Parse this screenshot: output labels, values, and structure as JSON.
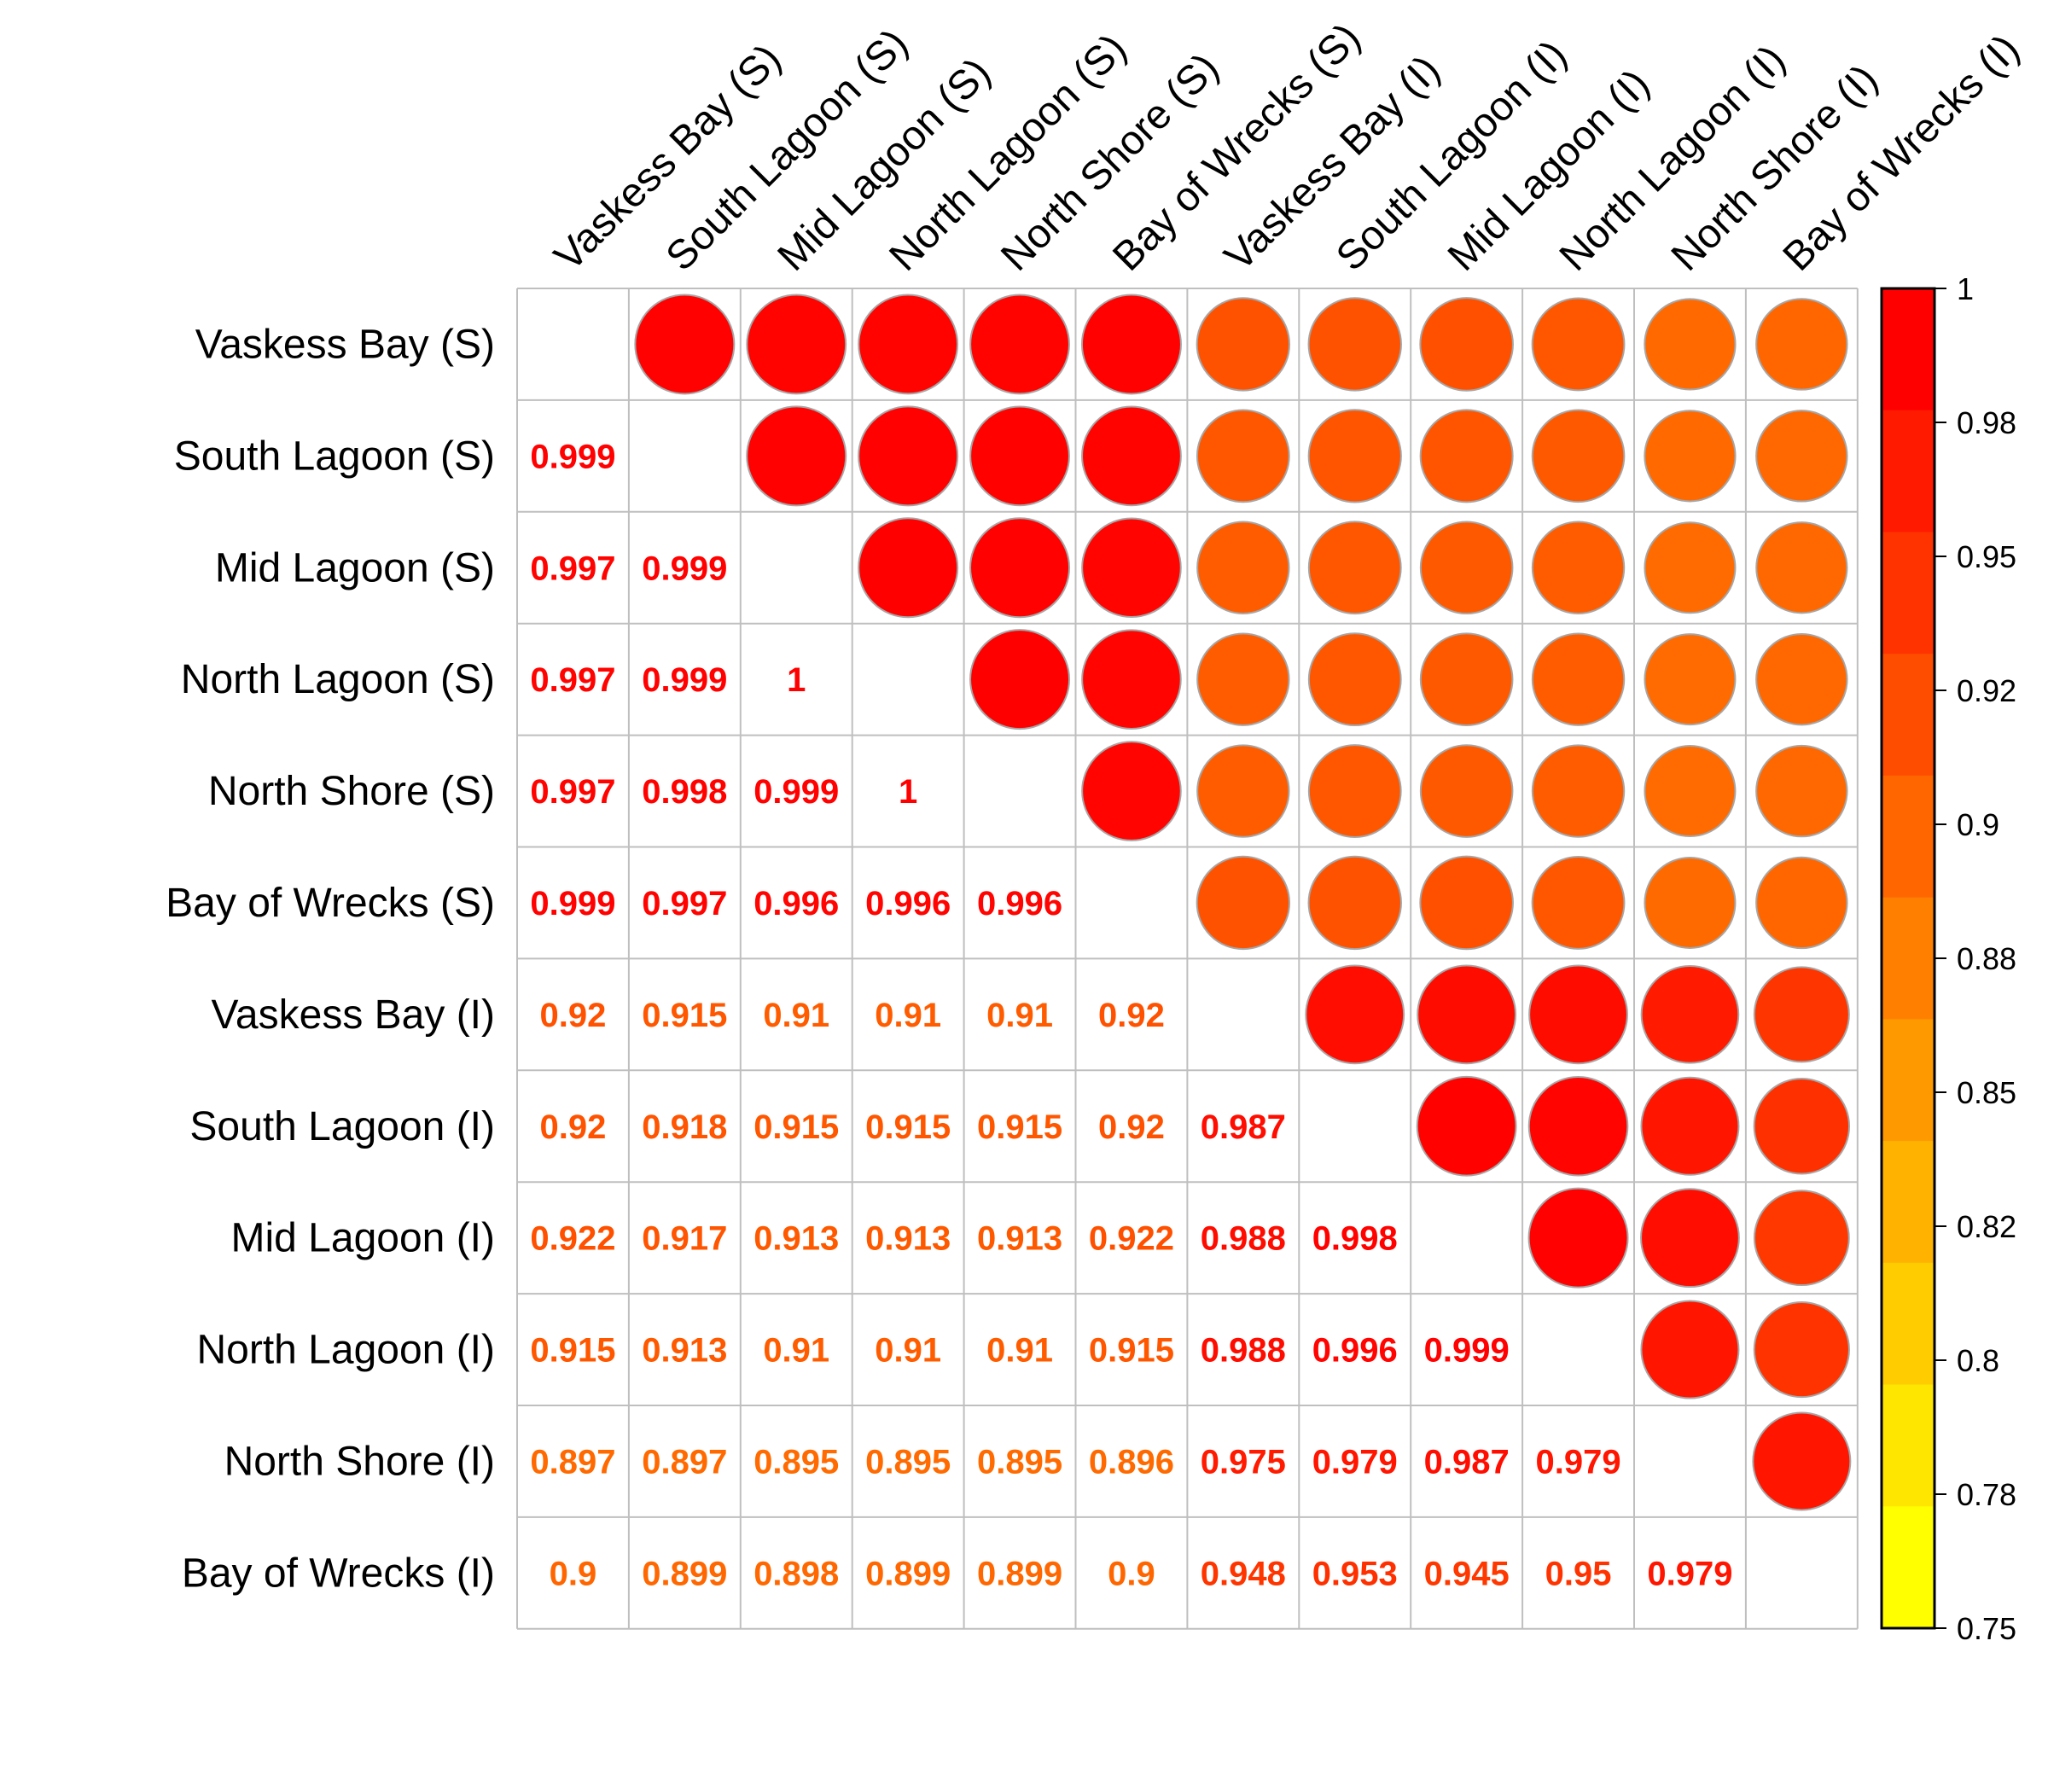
{
  "chart_data": {
    "type": "heatmap",
    "title": "",
    "labels": [
      "Vaskess Bay (S)",
      "South Lagoon (S)",
      "Mid Lagoon (S)",
      "North Lagoon (S)",
      "North Shore (S)",
      "Bay of Wrecks (S)",
      "Vaskess Bay (I)",
      "South Lagoon (I)",
      "Mid Lagoon (I)",
      "North Lagoon (I)",
      "North Shore (I)",
      "Bay of Wrecks (I)"
    ],
    "lower_triangle_labels": [
      [],
      [
        "0.999"
      ],
      [
        "0.997",
        "0.999"
      ],
      [
        "0.997",
        "0.999",
        "1"
      ],
      [
        "0.997",
        "0.998",
        "0.999",
        "1"
      ],
      [
        "0.999",
        "0.997",
        "0.996",
        "0.996",
        "0.996"
      ],
      [
        "0.92",
        "0.915",
        "0.91",
        "0.91",
        "0.91",
        "0.92"
      ],
      [
        "0.92",
        "0.918",
        "0.915",
        "0.915",
        "0.915",
        "0.92",
        "0.987"
      ],
      [
        "0.922",
        "0.917",
        "0.913",
        "0.913",
        "0.913",
        "0.922",
        "0.988",
        "0.998"
      ],
      [
        "0.915",
        "0.913",
        "0.91",
        "0.91",
        "0.91",
        "0.915",
        "0.988",
        "0.996",
        "0.999"
      ],
      [
        "0.897",
        "0.897",
        "0.895",
        "0.895",
        "0.895",
        "0.896",
        "0.975",
        "0.979",
        "0.987",
        "0.979"
      ],
      [
        "0.9",
        "0.899",
        "0.898",
        "0.899",
        "0.899",
        "0.9",
        "0.948",
        "0.953",
        "0.945",
        "0.95",
        "0.979"
      ]
    ],
    "upper_triangle": "circles sized and colored by correlation value",
    "diagonal": "blank",
    "colorbar": {
      "min": 0.75,
      "max": 1,
      "ticks": [
        "1",
        "0.98",
        "0.95",
        "0.92",
        "0.9",
        "0.88",
        "0.85",
        "0.82",
        "0.8",
        "0.78",
        "0.75"
      ],
      "colors_top_to_bottom": [
        "#ff0000",
        "#ff1a00",
        "#ff3300",
        "#ff4d00",
        "#ff6600",
        "#ff8000",
        "#ff9900",
        "#ffb300",
        "#ffcc00",
        "#ffe600",
        "#ffff00"
      ]
    },
    "legend_position": "right"
  }
}
